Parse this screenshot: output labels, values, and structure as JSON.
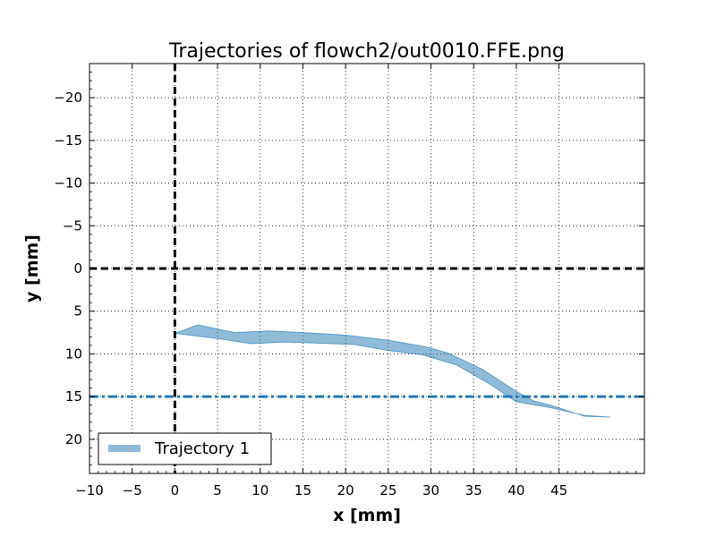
{
  "chart_data": {
    "type": "area",
    "title": "Trajectories of flowch2/out0010.FFE.png",
    "xlabel": "x [mm]",
    "ylabel": "y [mm]",
    "xlim": [
      -10,
      55
    ],
    "ylim": [
      24,
      -24
    ],
    "y_inverted": true,
    "x_ticks": [
      -10,
      -5,
      0,
      5,
      10,
      15,
      20,
      25,
      30,
      35,
      40,
      45
    ],
    "x_tick_labels": [
      "−10",
      "−5",
      "0",
      "5",
      "10",
      "15",
      "20",
      "25",
      "30",
      "35",
      "40",
      "45"
    ],
    "y_ticks": [
      -20,
      -15,
      -10,
      -5,
      0,
      5,
      10,
      15,
      20
    ],
    "y_tick_labels": [
      "−20",
      "−15",
      "−10",
      "−5",
      "0",
      "5",
      "10",
      "15",
      "20"
    ],
    "grid": true,
    "legend_position": "lower-left",
    "series": [
      {
        "name": "Trajectory 1",
        "color": "#1f77b4",
        "upper": {
          "x": [
            0,
            2.7,
            7,
            11,
            15,
            20,
            25,
            29.5,
            32,
            36,
            40,
            42,
            44,
            48,
            51
          ],
          "y": [
            7.6,
            6.6,
            7.5,
            7.3,
            7.5,
            7.8,
            8.4,
            9.2,
            9.9,
            11.8,
            14.4,
            15.5,
            16.0,
            17.3,
            17.4
          ]
        },
        "lower": {
          "x": [
            51,
            48,
            44,
            40,
            37,
            33,
            29,
            25,
            21,
            13,
            9,
            5,
            0
          ],
          "y": [
            17.4,
            17.2,
            16.3,
            15.6,
            13.6,
            11.3,
            10.1,
            9.6,
            8.9,
            8.6,
            8.8,
            8.2,
            7.6
          ]
        }
      }
    ],
    "reference_lines": [
      {
        "orientation": "vertical",
        "value": 0,
        "color": "#000000",
        "style": "dashed"
      },
      {
        "orientation": "horizontal",
        "value": 0,
        "color": "#000000",
        "style": "dashed"
      },
      {
        "orientation": "horizontal",
        "value": 15,
        "color": "#1f77b4",
        "style": "dash-dot"
      }
    ]
  }
}
